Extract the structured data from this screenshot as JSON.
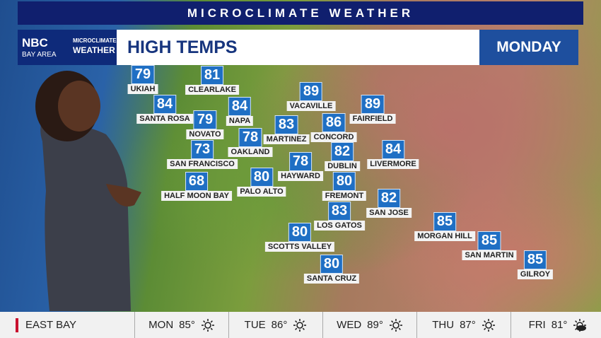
{
  "banner": "MICROCLIMATE WEATHER",
  "logo": {
    "network": "NBC",
    "region": "BAY AREA",
    "brand_line1": "MICROCLIMATE",
    "brand_line2": "WEATHER"
  },
  "title": "HIGH TEMPS",
  "day": "MONDAY",
  "cities": [
    {
      "name": "UKIAH",
      "temp": 79
    },
    {
      "name": "CLEARLAKE",
      "temp": 81
    },
    {
      "name": "SANTA ROSA",
      "temp": 84
    },
    {
      "name": "NAPA",
      "temp": 84
    },
    {
      "name": "NOVATO",
      "temp": 79
    },
    {
      "name": "VACAVILLE",
      "temp": 89
    },
    {
      "name": "FAIRFIELD",
      "temp": 89
    },
    {
      "name": "MARTINEZ",
      "temp": 83
    },
    {
      "name": "CONCORD",
      "temp": 86
    },
    {
      "name": "OAKLAND",
      "temp": 78
    },
    {
      "name": "SAN FRANCISCO",
      "temp": 73
    },
    {
      "name": "LIVERMORE",
      "temp": 84
    },
    {
      "name": "DUBLIN",
      "temp": 82
    },
    {
      "name": "HAYWARD",
      "temp": 78
    },
    {
      "name": "HALF MOON BAY",
      "temp": 68
    },
    {
      "name": "PALO ALTO",
      "temp": 80
    },
    {
      "name": "FREMONT",
      "temp": 80
    },
    {
      "name": "SAN JOSE",
      "temp": 82
    },
    {
      "name": "LOS GATOS",
      "temp": 83
    },
    {
      "name": "MORGAN HILL",
      "temp": 85
    },
    {
      "name": "SCOTTS VALLEY",
      "temp": 80
    },
    {
      "name": "SAN MARTIN",
      "temp": 85
    },
    {
      "name": "SANTA CRUZ",
      "temp": 80
    },
    {
      "name": "GILROY",
      "temp": 85
    }
  ],
  "forecast": {
    "region": "EAST BAY",
    "days": [
      {
        "day": "MON",
        "temp": "85°",
        "icon": "sun"
      },
      {
        "day": "TUE",
        "temp": "86°",
        "icon": "sun"
      },
      {
        "day": "WED",
        "temp": "89°",
        "icon": "sun"
      },
      {
        "day": "THU",
        "temp": "87°",
        "icon": "sun"
      },
      {
        "day": "FRI",
        "temp": "81°",
        "icon": "partly-cloudy"
      }
    ]
  }
}
